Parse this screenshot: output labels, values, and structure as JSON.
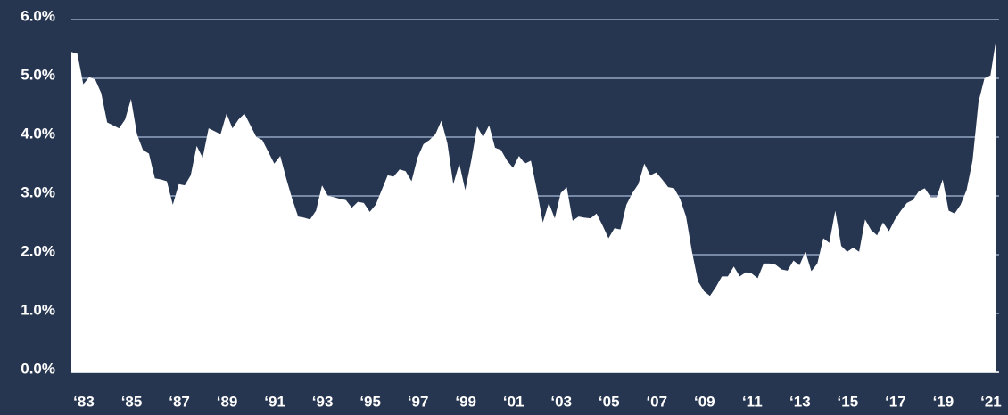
{
  "chart_data": {
    "type": "area",
    "color": "#ffffff",
    "grid": true,
    "categories": [
      "‘83",
      null,
      null,
      null,
      null,
      null,
      null,
      null,
      "‘85",
      null,
      null,
      null,
      null,
      null,
      null,
      null,
      "‘87",
      null,
      null,
      null,
      null,
      null,
      null,
      null,
      "‘89",
      null,
      null,
      null,
      null,
      null,
      null,
      null,
      "‘91",
      null,
      null,
      null,
      null,
      null,
      null,
      null,
      "‘93",
      null,
      null,
      null,
      null,
      null,
      null,
      null,
      "‘95",
      null,
      null,
      null,
      null,
      null,
      null,
      null,
      "‘97",
      null,
      null,
      null,
      null,
      null,
      null,
      null,
      "‘99",
      null,
      null,
      null,
      null,
      null,
      null,
      null,
      "‘01",
      null,
      null,
      null,
      null,
      null,
      null,
      null,
      "‘03",
      null,
      null,
      null,
      null,
      null,
      null,
      null,
      "‘05",
      null,
      null,
      null,
      null,
      null,
      null,
      null,
      "‘07",
      null,
      null,
      null,
      null,
      null,
      null,
      null,
      "‘09",
      null,
      null,
      null,
      null,
      null,
      null,
      null,
      "‘11",
      null,
      null,
      null,
      null,
      null,
      null,
      null,
      "‘13",
      null,
      null,
      null,
      null,
      null,
      null,
      null,
      "‘15",
      null,
      null,
      null,
      null,
      null,
      null,
      null,
      "‘17",
      null,
      null,
      null,
      null,
      null,
      null,
      null,
      "‘19",
      null,
      null,
      null,
      null,
      null,
      null,
      null,
      "‘21",
      null,
      null,
      null
    ],
    "values": [
      5.45,
      5.42,
      4.9,
      5.02,
      4.98,
      4.75,
      4.25,
      4.2,
      4.15,
      4.3,
      4.65,
      4.05,
      3.78,
      3.72,
      3.3,
      3.28,
      3.25,
      2.85,
      3.2,
      3.18,
      3.35,
      3.85,
      3.65,
      4.15,
      4.1,
      4.05,
      4.4,
      4.15,
      4.3,
      4.4,
      4.2,
      4.0,
      3.95,
      3.75,
      3.55,
      3.68,
      3.3,
      2.95,
      2.65,
      2.63,
      2.6,
      2.75,
      3.18,
      3.0,
      2.98,
      2.95,
      2.93,
      2.8,
      2.9,
      2.88,
      2.73,
      2.85,
      3.1,
      3.35,
      3.33,
      3.45,
      3.42,
      3.25,
      3.65,
      3.88,
      3.95,
      4.05,
      4.28,
      3.9,
      3.2,
      3.55,
      3.1,
      3.6,
      4.18,
      4.0,
      4.2,
      3.82,
      3.78,
      3.6,
      3.48,
      3.68,
      3.55,
      3.6,
      3.1,
      2.55,
      2.88,
      2.62,
      3.05,
      3.15,
      2.58,
      2.65,
      2.63,
      2.62,
      2.7,
      2.5,
      2.28,
      2.45,
      2.43,
      2.85,
      3.05,
      3.2,
      3.55,
      3.35,
      3.4,
      3.28,
      3.15,
      3.13,
      2.95,
      2.65,
      2.05,
      1.55,
      1.38,
      1.3,
      1.45,
      1.63,
      1.63,
      1.8,
      1.63,
      1.7,
      1.68,
      1.6,
      1.85,
      1.85,
      1.83,
      1.75,
      1.73,
      1.9,
      1.82,
      2.05,
      1.72,
      1.85,
      2.28,
      2.2,
      2.75,
      2.15,
      2.05,
      2.12,
      2.05,
      2.6,
      2.42,
      2.33,
      2.55,
      2.4,
      2.6,
      2.75,
      2.88,
      2.93,
      3.08,
      3.13,
      2.98,
      2.98,
      3.28,
      2.75,
      2.7,
      2.85,
      3.1,
      3.6,
      4.6,
      5.0,
      5.05,
      5.7
    ],
    "ylim": [
      0,
      6
    ],
    "yticks": [
      {
        "value": 0,
        "label": "0.0%"
      },
      {
        "value": 1,
        "label": "1.0%"
      },
      {
        "value": 2,
        "label": "2.0%"
      },
      {
        "value": 3,
        "label": "3.0%"
      },
      {
        "value": 4,
        "label": "4.0%"
      },
      {
        "value": 5,
        "label": "5.0%"
      },
      {
        "value": 6,
        "label": "6.0%"
      }
    ]
  }
}
